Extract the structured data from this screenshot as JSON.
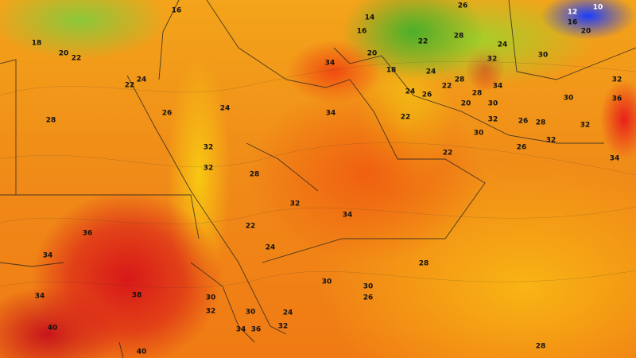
{
  "map": {
    "type": "temperature contour map",
    "colors": {
      "cool": "#4caf2a",
      "cold": "#1a3cff",
      "mild": "#f8c812",
      "warm": "#f08a18",
      "hot": "#d81818"
    }
  },
  "labels": [
    "16",
    "18",
    "20",
    "22",
    "22",
    "24",
    "26",
    "28",
    "24",
    "34",
    "34",
    "32",
    "32",
    "28",
    "32",
    "34",
    "22",
    "24",
    "36",
    "34",
    "34",
    "38",
    "40",
    "40",
    "30",
    "32",
    "30",
    "34",
    "36",
    "32",
    "24",
    "30",
    "30",
    "26",
    "28",
    "28",
    "14",
    "16",
    "20",
    "18",
    "22",
    "24",
    "26",
    "28",
    "24",
    "32",
    "34",
    "30",
    "28",
    "20",
    "30",
    "12",
    "10",
    "16",
    "20",
    "32",
    "36",
    "30",
    "32",
    "28",
    "26",
    "32",
    "26",
    "34",
    "30",
    "32",
    "22",
    "24",
    "26",
    "22",
    "28",
    "22"
  ]
}
